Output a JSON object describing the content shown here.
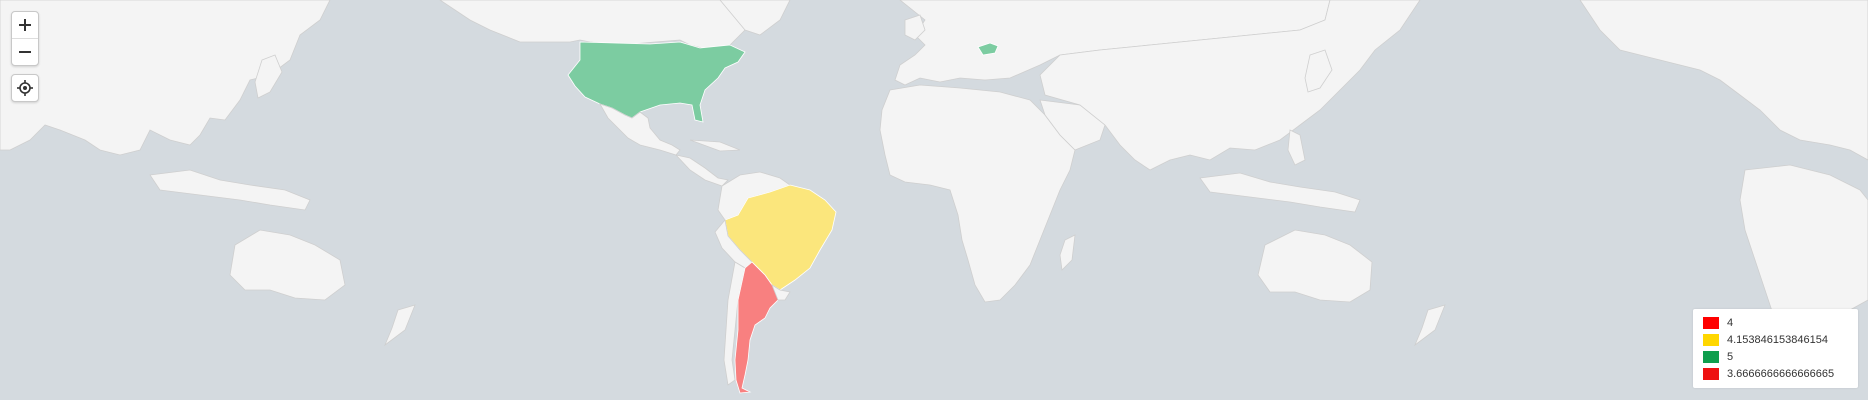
{
  "controls": {
    "zoom_in_icon": "plus-icon",
    "zoom_out_icon": "minus-icon",
    "locate_icon": "crosshair-icon"
  },
  "map": {
    "land_color": "#f4f4f4",
    "water_color": "#d4dadf",
    "border_color": "#cfcfcf",
    "regions": [
      {
        "name": "United States",
        "color": "#7ccca1",
        "value": "5"
      },
      {
        "name": "Hungary",
        "color": "#7ccca1",
        "value": "5"
      },
      {
        "name": "Brazil",
        "color": "#fbe67c",
        "value": "4.153846153846154"
      },
      {
        "name": "Argentina",
        "color": "#f88080",
        "value": "3.6666666666666665"
      }
    ]
  },
  "legend": {
    "items": [
      {
        "label": "4",
        "color": "#ff0000"
      },
      {
        "label": "4.153846153846154",
        "color": "#ffd700"
      },
      {
        "label": "5",
        "color": "#0e9e4d"
      },
      {
        "label": "3.6666666666666665",
        "color": "#ee1111"
      }
    ]
  }
}
